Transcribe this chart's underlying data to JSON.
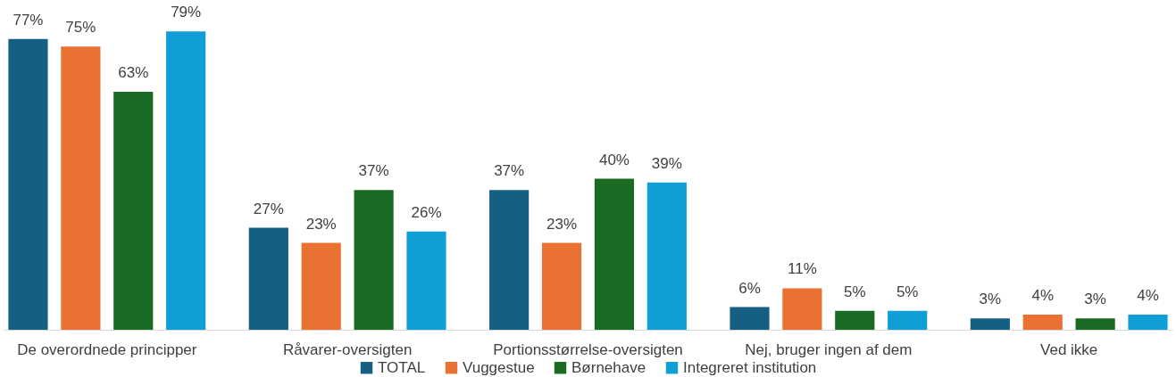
{
  "chart_data": {
    "type": "bar",
    "categories": [
      "De overordnede principper",
      "Råvarer-oversigten",
      "Portionsstørrelse-oversigten",
      "Nej, bruger ingen af dem",
      "Ved ikke"
    ],
    "series": [
      {
        "name": "TOTAL",
        "color": "#156082",
        "values": [
          77,
          27,
          37,
          6,
          3
        ],
        "value_labels": [
          "77%",
          "27%",
          "37%",
          "6%",
          "3%"
        ]
      },
      {
        "name": "Vuggestue",
        "color": "#e97132",
        "values": [
          75,
          23,
          23,
          11,
          4
        ],
        "value_labels": [
          "75%",
          "23%",
          "23%",
          "11%",
          "4%"
        ]
      },
      {
        "name": "Børnehave",
        "color": "#196b24",
        "values": [
          63,
          37,
          40,
          5,
          3
        ],
        "value_labels": [
          "63%",
          "37%",
          "40%",
          "5%",
          "3%"
        ]
      },
      {
        "name": "Integreret institution",
        "color": "#0f9ed5",
        "values": [
          79,
          26,
          39,
          5,
          4
        ],
        "value_labels": [
          "79%",
          "26%",
          "39%",
          "5%",
          "4%"
        ]
      }
    ],
    "legend": "bottom",
    "grid": false
  }
}
